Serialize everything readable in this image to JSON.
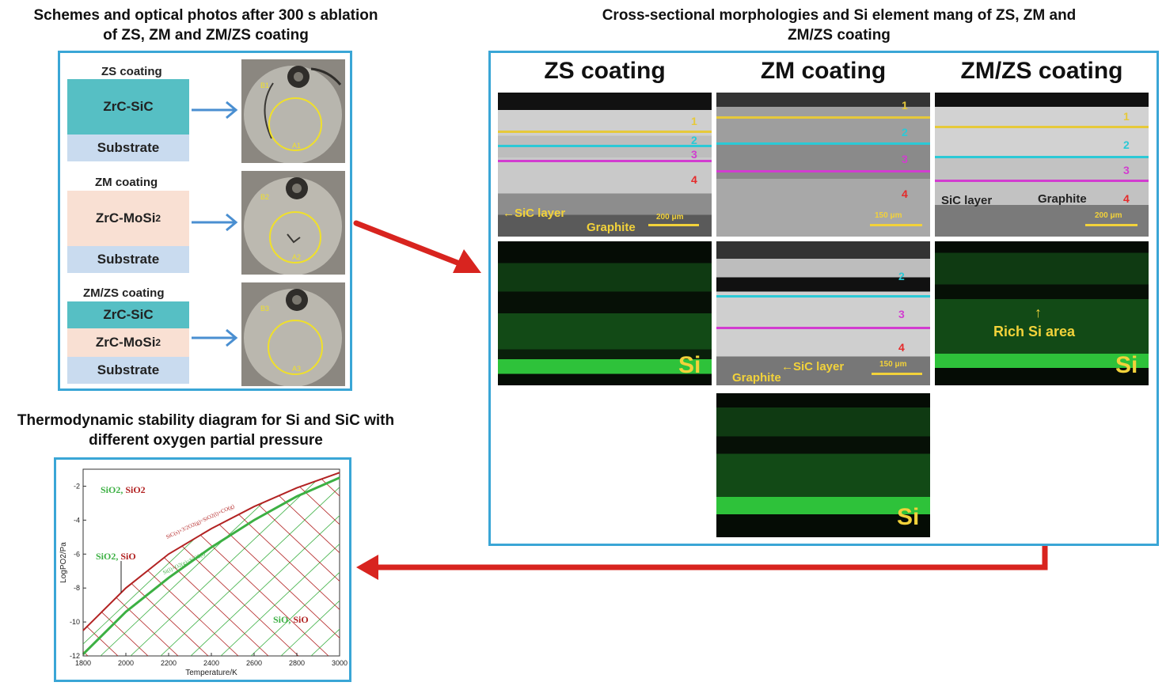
{
  "titles": {
    "schemes": "Schemes and optical photos after 300 s ablation of ZS, ZM and ZM/ZS coating",
    "cross": "Cross-sectional morphologies and Si element mang of ZS, ZM and ZM/ZS coating",
    "thermo": "Thermodynamic stability diagram for Si and SiC with different oxygen partial pressure"
  },
  "schemes": [
    {
      "coating_label": "ZS coating",
      "layers": [
        "ZrC-SiC",
        "Substrate"
      ],
      "photo_labels": [
        "B1",
        "A1"
      ]
    },
    {
      "coating_label": "ZM coating",
      "layers": [
        "ZrC-MoSi2",
        "Substrate"
      ],
      "photo_labels": [
        "B2",
        "A2"
      ]
    },
    {
      "coating_label": "ZM/ZS coating",
      "layers": [
        "ZrC-SiC",
        "ZrC-MoSi2",
        "Substrate"
      ],
      "photo_labels": [
        "B3",
        "A3"
      ]
    }
  ],
  "cross_section": {
    "columns": [
      "ZS coating",
      "ZM coating",
      "ZM/ZS coating"
    ],
    "line_numbers": [
      "1",
      "2",
      "3",
      "4"
    ],
    "zs": {
      "sic_layer": "←SiC layer",
      "graphite": "Graphite",
      "scale": "200 μm"
    },
    "zm": {
      "scale": "150 μm",
      "sic_layer": "←SiC layer",
      "graphite": "Graphite",
      "scale2": "150 μm"
    },
    "zmzs": {
      "sic_layer": "SiC layer",
      "graphite": "Graphite",
      "scale": "200 μm",
      "rich": "Rich Si area"
    },
    "si_label": "Si"
  },
  "chart_data": {
    "type": "line",
    "xlabel": "Temperature/K",
    "ylabel": "LogPO2/Pa",
    "xlim": [
      1800,
      3000
    ],
    "ylim": [
      -12,
      -1
    ],
    "x_ticks": [
      "1800",
      "2000",
      "2200",
      "2400",
      "2600",
      "2800",
      "3000"
    ],
    "y_ticks": [
      "-2",
      "-4",
      "-6",
      "-8",
      "-10",
      "-12"
    ],
    "series": [
      {
        "name": "SiC(s)+3/2O2(g)=SiO2(l)+CO(g)",
        "color": "#b22222",
        "x": [
          1800,
          2000,
          2200,
          2400,
          2600,
          2800,
          3000
        ],
        "y": [
          -10.5,
          -8.0,
          -6.0,
          -4.5,
          -3.2,
          -2.1,
          -1.2
        ]
      },
      {
        "name": "Si(l)+O2(g)=SiO2(l)",
        "color": "#3cb043",
        "x": [
          1800,
          2000,
          2200,
          2400,
          2600,
          2800,
          3000
        ],
        "y": [
          -11.9,
          -9.4,
          -7.4,
          -5.6,
          -4.0,
          -2.6,
          -1.5
        ]
      }
    ],
    "region_labels": [
      {
        "text_a": "SiO2",
        "text_b": "SiO2"
      },
      {
        "text_a": "SiO2",
        "text_b": "SiO"
      },
      {
        "text_a": "SiO",
        "text_b": "SiO"
      }
    ],
    "colors": {
      "red": "#b22222",
      "green": "#3cb043"
    }
  },
  "colors": {
    "panel_border": "#3aa6d6",
    "arrow": "#d8241f",
    "teal": "#56bfc4",
    "peach": "#f9e0d3",
    "blue": "#c9dbef",
    "yellow": "#f2d23a",
    "cyan": "#2bc9d6",
    "magenta": "#d23cd0",
    "red_num": "#e52a2a"
  }
}
